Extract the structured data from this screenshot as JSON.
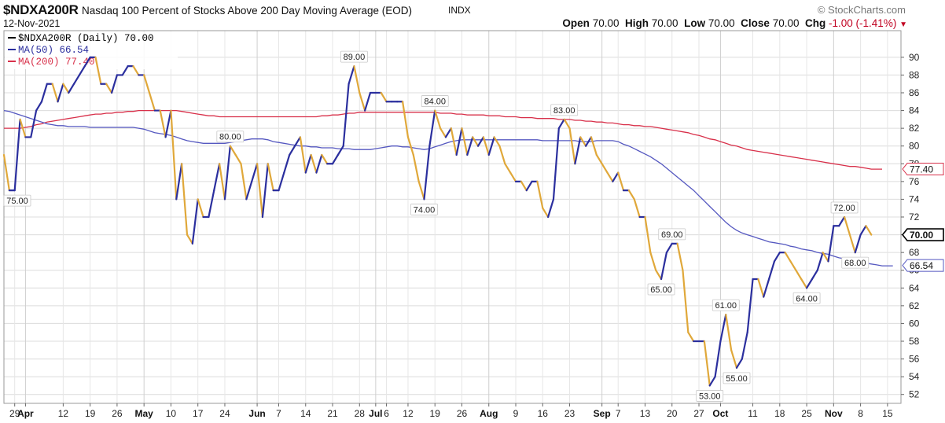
{
  "header": {
    "symbol": "$NDXA200R",
    "title": "Nasdaq 100 Percent of Stocks Above 200 Day Moving Average (EOD)",
    "exchange": "INDX",
    "brand": "© StockCharts.com",
    "date": "12-Nov-2021",
    "open_label": "Open",
    "open_value": "70.00",
    "high_label": "High",
    "high_value": "70.00",
    "low_label": "Low",
    "low_value": "70.00",
    "close_label": "Close",
    "close_value": "70.00",
    "chg_label": "Chg",
    "chg_value": "-1.00 (-1.41%)"
  },
  "legend": {
    "main": "$NDXA200R (Daily) 70.00",
    "ma50": "MA(50) 66.54",
    "ma200": "MA(200) 77.40"
  },
  "colors": {
    "up": "#2b2f9e",
    "down": "#e0a83a",
    "ma50": "#5558c0",
    "ma200": "#d8304a",
    "grid": "#dcdcdc",
    "price_tag": "#000000"
  },
  "chart_data": {
    "type": "line",
    "ylim": [
      51,
      93
    ],
    "yticks": [
      52,
      54,
      56,
      58,
      60,
      62,
      64,
      66,
      68,
      70,
      72,
      74,
      76,
      78,
      80,
      82,
      84,
      86,
      88,
      90
    ],
    "xlabels": [
      {
        "label": "29",
        "bold": false,
        "i": 2
      },
      {
        "label": "Apr",
        "bold": true,
        "i": 4
      },
      {
        "label": "12",
        "bold": false,
        "i": 11
      },
      {
        "label": "19",
        "bold": false,
        "i": 16
      },
      {
        "label": "26",
        "bold": false,
        "i": 21
      },
      {
        "label": "May",
        "bold": true,
        "i": 26
      },
      {
        "label": "10",
        "bold": false,
        "i": 31
      },
      {
        "label": "17",
        "bold": false,
        "i": 36
      },
      {
        "label": "24",
        "bold": false,
        "i": 41
      },
      {
        "label": "Jun",
        "bold": true,
        "i": 47
      },
      {
        "label": "7",
        "bold": false,
        "i": 51
      },
      {
        "label": "14",
        "bold": false,
        "i": 56
      },
      {
        "label": "21",
        "bold": false,
        "i": 61
      },
      {
        "label": "28",
        "bold": false,
        "i": 66
      },
      {
        "label": "Jul",
        "bold": true,
        "i": 69
      },
      {
        "label": "6",
        "bold": false,
        "i": 71
      },
      {
        "label": "12",
        "bold": false,
        "i": 75
      },
      {
        "label": "19",
        "bold": false,
        "i": 80
      },
      {
        "label": "26",
        "bold": false,
        "i": 85
      },
      {
        "label": "Aug",
        "bold": true,
        "i": 90
      },
      {
        "label": "9",
        "bold": false,
        "i": 95
      },
      {
        "label": "16",
        "bold": false,
        "i": 100
      },
      {
        "label": "23",
        "bold": false,
        "i": 105
      },
      {
        "label": "Sep",
        "bold": true,
        "i": 111
      },
      {
        "label": "7",
        "bold": false,
        "i": 114
      },
      {
        "label": "13",
        "bold": false,
        "i": 119
      },
      {
        "label": "20",
        "bold": false,
        "i": 124
      },
      {
        "label": "27",
        "bold": false,
        "i": 129
      },
      {
        "label": "Oct",
        "bold": true,
        "i": 133
      },
      {
        "label": "11",
        "bold": false,
        "i": 139
      },
      {
        "label": "18",
        "bold": false,
        "i": 144
      },
      {
        "label": "25",
        "bold": false,
        "i": 149
      },
      {
        "label": "Nov",
        "bold": true,
        "i": 154
      },
      {
        "label": "8",
        "bold": false,
        "i": 159
      },
      {
        "label": "15",
        "bold": false,
        "i": 164
      }
    ],
    "x_index_range": [
      0,
      166.5
    ],
    "series": [
      {
        "name": "$NDXA200R",
        "values": [
          79,
          75,
          75,
          83,
          81,
          81,
          84,
          85,
          87,
          87,
          85,
          87,
          86,
          87,
          88,
          89,
          90,
          90,
          87,
          87,
          86,
          88,
          88,
          89,
          89,
          88,
          88,
          86,
          84,
          84,
          81,
          84,
          74,
          78,
          70,
          69,
          74,
          72,
          72,
          75,
          78,
          74,
          80,
          79,
          78,
          74,
          76,
          78,
          72,
          78,
          75,
          75,
          77,
          79,
          80,
          81,
          77,
          79,
          77,
          79,
          78,
          78,
          79,
          80,
          87,
          89,
          86,
          84,
          86,
          86,
          86,
          85,
          85,
          85,
          85,
          81,
          79,
          76,
          74,
          80,
          84,
          82,
          81,
          82,
          79,
          82,
          79,
          81,
          80,
          81,
          79,
          81,
          80,
          78,
          77,
          76,
          76,
          75,
          76,
          76,
          73,
          72,
          74,
          82,
          83,
          82,
          78,
          81,
          80,
          81,
          79,
          78,
          77,
          76,
          77,
          75,
          75,
          74,
          72,
          72,
          68,
          66,
          65,
          68,
          69,
          69,
          66,
          59,
          58,
          58,
          58,
          53,
          54,
          58,
          61,
          57,
          55,
          56,
          59,
          65,
          65,
          63,
          65,
          67,
          68,
          68,
          67,
          66,
          65,
          64,
          65,
          66,
          68,
          67,
          71,
          71,
          72,
          70,
          68,
          70,
          71,
          70
        ]
      },
      {
        "name": "MA(50)",
        "values": [
          84,
          83.9,
          83.7,
          83.5,
          83.3,
          83.1,
          82.9,
          82.7,
          82.5,
          82.4,
          82.3,
          82.3,
          82.2,
          82.2,
          82.2,
          82.2,
          82.1,
          82.1,
          82.1,
          82.1,
          82.1,
          82.1,
          82.1,
          82.1,
          82.1,
          82.0,
          81.9,
          81.7,
          81.5,
          81.4,
          81.3,
          81.2,
          81.0,
          80.8,
          80.6,
          80.5,
          80.4,
          80.3,
          80.3,
          80.3,
          80.3,
          80.3,
          80.4,
          80.5,
          80.6,
          80.7,
          80.8,
          80.8,
          80.8,
          80.7,
          80.5,
          80.4,
          80.3,
          80.2,
          80.1,
          80.0,
          80.0,
          79.9,
          79.9,
          79.8,
          79.8,
          79.8,
          79.7,
          79.7,
          79.7,
          79.6,
          79.6,
          79.6,
          79.6,
          79.7,
          79.8,
          79.9,
          80.0,
          80.0,
          79.9,
          79.9,
          79.8,
          79.7,
          79.6,
          79.7,
          79.9,
          80.1,
          80.3,
          80.5,
          80.6,
          80.7,
          80.7,
          80.7,
          80.7,
          80.7,
          80.7,
          80.7,
          80.7,
          80.7,
          80.7,
          80.7,
          80.7,
          80.7,
          80.7,
          80.7,
          80.6,
          80.6,
          80.6,
          80.6,
          80.6,
          80.6,
          80.6,
          80.5,
          80.5,
          80.5,
          80.6,
          80.6,
          80.6,
          80.6,
          80.5,
          80.2,
          80.0,
          79.7,
          79.4,
          79.1,
          78.8,
          78.4,
          78.0,
          77.5,
          77.0,
          76.5,
          76.0,
          75.5,
          75.0,
          74.4,
          73.8,
          73.2,
          72.6,
          72.0,
          71.4,
          70.9,
          70.5,
          70.2,
          70.0,
          69.8,
          69.6,
          69.4,
          69.2,
          69.1,
          69.0,
          68.9,
          68.7,
          68.6,
          68.4,
          68.3,
          68.2,
          68.0,
          67.9,
          67.8,
          67.6,
          67.4,
          67.3,
          67.2,
          67.0,
          66.9,
          66.8,
          66.7,
          66.6,
          66.5,
          66.5,
          66.5
        ]
      },
      {
        "name": "MA(200)",
        "values": [
          82,
          82,
          82,
          82,
          82.1,
          82.2,
          82.4,
          82.5,
          82.7,
          82.8,
          82.9,
          83.0,
          83.1,
          83.2,
          83.3,
          83.4,
          83.5,
          83.6,
          83.6,
          83.7,
          83.7,
          83.8,
          83.8,
          83.9,
          83.9,
          84.0,
          84.0,
          84.0,
          84.0,
          84.0,
          84.0,
          84.0,
          84.0,
          83.9,
          83.8,
          83.7,
          83.6,
          83.5,
          83.4,
          83.4,
          83.3,
          83.3,
          83.3,
          83.3,
          83.3,
          83.3,
          83.3,
          83.3,
          83.3,
          83.3,
          83.3,
          83.3,
          83.3,
          83.3,
          83.3,
          83.3,
          83.3,
          83.3,
          83.3,
          83.4,
          83.4,
          83.5,
          83.5,
          83.6,
          83.7,
          83.7,
          83.8,
          83.8,
          83.8,
          83.8,
          83.8,
          83.8,
          83.8,
          83.8,
          83.8,
          83.8,
          83.8,
          83.8,
          83.8,
          83.8,
          83.8,
          83.7,
          83.7,
          83.7,
          83.6,
          83.6,
          83.5,
          83.5,
          83.5,
          83.5,
          83.4,
          83.4,
          83.4,
          83.3,
          83.3,
          83.3,
          83.2,
          83.2,
          83.2,
          83.1,
          83.1,
          83.1,
          83.1,
          83.0,
          83.0,
          83.0,
          82.9,
          82.9,
          82.8,
          82.8,
          82.7,
          82.7,
          82.6,
          82.6,
          82.5,
          82.4,
          82.4,
          82.3,
          82.3,
          82.2,
          82.2,
          82.1,
          82.0,
          81.9,
          81.8,
          81.7,
          81.6,
          81.5,
          81.3,
          81.2,
          81.0,
          80.8,
          80.7,
          80.5,
          80.3,
          80.1,
          80.0,
          79.8,
          79.6,
          79.5,
          79.4,
          79.3,
          79.2,
          79.1,
          79.0,
          78.9,
          78.8,
          78.7,
          78.6,
          78.5,
          78.4,
          78.3,
          78.2,
          78.1,
          78.0,
          77.9,
          77.8,
          77.7,
          77.7,
          77.6,
          77.5,
          77.4,
          77.4,
          77.4
        ]
      }
    ],
    "data_labels": [
      {
        "i": 1,
        "value": "75.00",
        "pos": "below"
      },
      {
        "i": 42,
        "value": "80.00",
        "pos": "above"
      },
      {
        "i": 65,
        "value": "89.00",
        "pos": "above"
      },
      {
        "i": 78,
        "value": "74.00",
        "pos": "below"
      },
      {
        "i": 80,
        "value": "84.00",
        "pos": "above"
      },
      {
        "i": 104,
        "value": "83.00",
        "pos": "above"
      },
      {
        "i": 122,
        "value": "65.00",
        "pos": "below"
      },
      {
        "i": 124,
        "value": "69.00",
        "pos": "above"
      },
      {
        "i": 131,
        "value": "53.00",
        "pos": "below"
      },
      {
        "i": 134,
        "value": "61.00",
        "pos": "above"
      },
      {
        "i": 136,
        "value": "55.00",
        "pos": "below"
      },
      {
        "i": 149,
        "value": "64.00",
        "pos": "below"
      },
      {
        "i": 156,
        "value": "72.00",
        "pos": "above"
      },
      {
        "i": 158,
        "value": "68.00",
        "pos": "below"
      }
    ],
    "price_tags": [
      {
        "value": 77.4,
        "label": "77.40",
        "style": "ma200"
      },
      {
        "value": 70.0,
        "label": "70.00",
        "style": "price"
      },
      {
        "value": 66.54,
        "label": "66.54",
        "style": "ma50"
      }
    ]
  }
}
